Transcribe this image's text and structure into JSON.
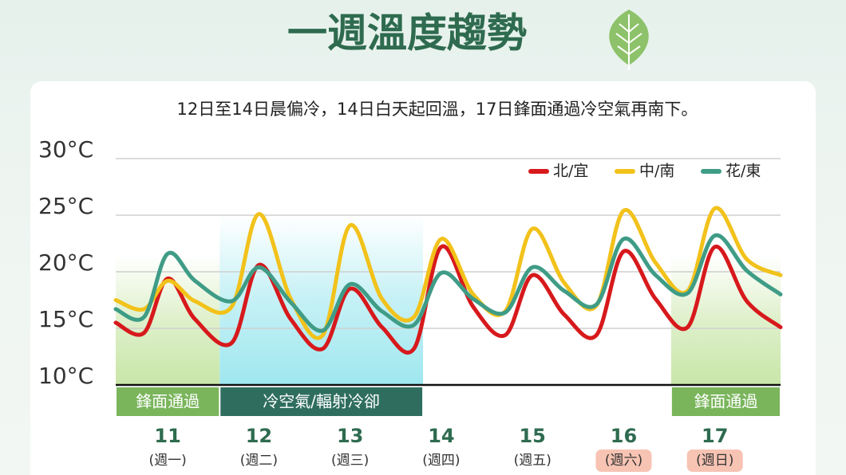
{
  "chart_data": {
    "type": "line",
    "title": "一週溫度趨勢",
    "subtitle": "12日至14日晨偏冷，14日白天起回溫，17日鋒面通過冷空氣再南下。",
    "x": [
      10.43,
      10.74,
      11.0,
      11.3,
      11.7,
      12.0,
      12.35,
      12.7,
      13.0,
      13.35,
      13.7,
      14.0,
      14.35,
      14.7,
      15.0,
      15.35,
      15.7,
      16.0,
      16.35,
      16.7,
      17.0,
      17.35,
      17.72
    ],
    "xlim": [
      10.43,
      17.72
    ],
    "xticks": [
      11,
      12,
      13,
      14,
      15,
      16,
      17
    ],
    "weekdays": [
      "(週一)",
      "(週二)",
      "(週三)",
      "(週四)",
      "(週五)",
      "(週六)",
      "(週日)"
    ],
    "weekday_highlight": [
      false,
      false,
      false,
      false,
      false,
      true,
      true
    ],
    "ylim": [
      10,
      30
    ],
    "yticks": [
      {
        "value": 10,
        "label": "10°C"
      },
      {
        "value": 15,
        "label": "15°C"
      },
      {
        "value": 20,
        "label": "20°C"
      },
      {
        "value": 25,
        "label": "25°C"
      },
      {
        "value": 30,
        "label": "30°C"
      }
    ],
    "grid": true,
    "legend": "top-right",
    "series": [
      {
        "name": "北/宜",
        "color": "#d7191c",
        "values": [
          15.5,
          14.6,
          19.4,
          15.8,
          13.7,
          20.6,
          15.8,
          13.2,
          18.5,
          15.1,
          13.2,
          22.2,
          16.9,
          14.4,
          19.7,
          16.2,
          14.4,
          21.8,
          17.6,
          15.1,
          22.2,
          17.4,
          15.1
        ]
      },
      {
        "name": "中/南",
        "color": "#f2c21b",
        "values": [
          17.5,
          16.7,
          19.2,
          17.4,
          16.9,
          25.1,
          17.6,
          14.4,
          24.1,
          17.6,
          16.0,
          22.9,
          18.0,
          16.5,
          23.8,
          19.0,
          17.0,
          25.4,
          20.8,
          18.3,
          25.6,
          21.1,
          19.7
        ]
      },
      {
        "name": "花/東",
        "color": "#3f9c86",
        "values": [
          16.7,
          16.0,
          21.6,
          19.2,
          17.4,
          20.4,
          17.3,
          14.8,
          18.9,
          16.5,
          15.3,
          19.9,
          17.6,
          16.4,
          20.4,
          18.3,
          17.1,
          22.9,
          19.7,
          18.1,
          23.2,
          20.1,
          18.0
        ]
      }
    ],
    "bands": [
      {
        "label": "鋒面通過",
        "from": 10.43,
        "to": 11.57,
        "color": "#7ab55c",
        "shade": "#c9e6a8"
      },
      {
        "label": "冷空氣/輻射冷卻",
        "from": 11.57,
        "to": 13.8,
        "color": "#2f6e5e",
        "shade": "#9fe7ef"
      },
      {
        "label": "鋒面通過",
        "from": 16.52,
        "to": 17.72,
        "color": "#7ab55c",
        "shade": "#c9e6a8"
      }
    ]
  }
}
